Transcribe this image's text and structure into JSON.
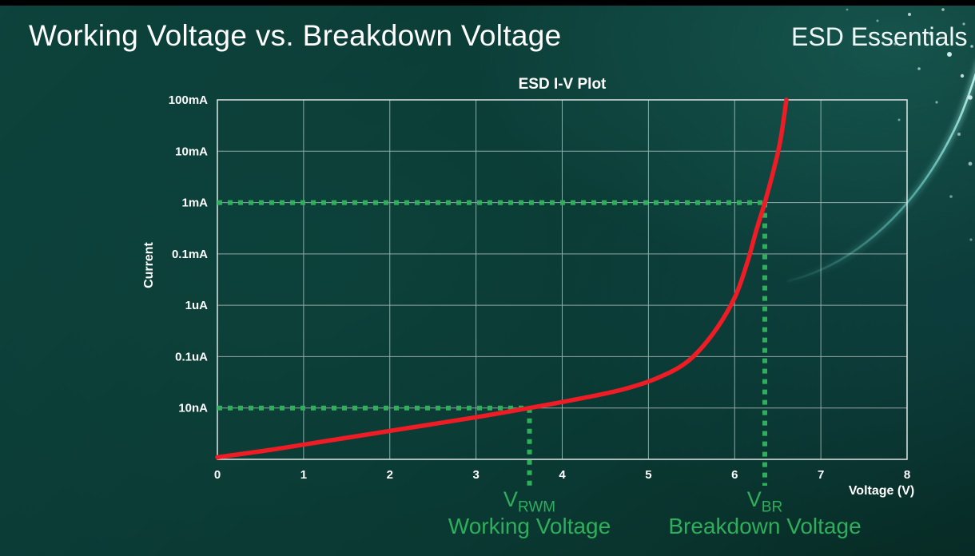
{
  "slide": {
    "title": "Working Voltage vs. Breakdown Voltage",
    "brand": "ESD Essentials"
  },
  "colors": {
    "curve_red": "#ee1c25",
    "annotation_green": "#2fae5b",
    "grid": "#c2cccb",
    "border": "#dfe7e6",
    "text": "#ffffff",
    "background_teal": "#0a3530",
    "swoosh": "#7fe8df"
  },
  "chart_data": {
    "type": "line",
    "title": "ESD I-V Plot",
    "xlabel": "Voltage (V)",
    "ylabel": "Current",
    "x_range": [
      0,
      8
    ],
    "x_tick_labels": [
      "0",
      "1",
      "2",
      "3",
      "4",
      "5",
      "6",
      "7",
      "8"
    ],
    "y_scale": "log (labels as shown, top to bottom)",
    "y_tick_labels": [
      "100mA",
      "10mA",
      "1mA",
      "0.1mA",
      "1uA",
      "0.1uA",
      "10nA"
    ],
    "grid": true,
    "series": [
      {
        "name": "esd-device-iv-curve",
        "color": "#ee1c25",
        "points_units": "[volts, grid-rows above bottom axis (each row = one labeled current level)]",
        "points": [
          [
            0,
            0.04
          ],
          [
            0.6,
            0.18
          ],
          [
            1.2,
            0.34
          ],
          [
            1.8,
            0.5
          ],
          [
            2.4,
            0.66
          ],
          [
            3.0,
            0.82
          ],
          [
            3.62,
            1.0
          ],
          [
            4.2,
            1.18
          ],
          [
            4.7,
            1.36
          ],
          [
            5.1,
            1.58
          ],
          [
            5.45,
            1.9
          ],
          [
            5.75,
            2.45
          ],
          [
            6.0,
            3.15
          ],
          [
            6.15,
            3.85
          ],
          [
            6.25,
            4.45
          ],
          [
            6.35,
            5.0
          ],
          [
            6.45,
            5.62
          ],
          [
            6.53,
            6.2
          ],
          [
            6.6,
            7.0
          ]
        ]
      }
    ],
    "annotations": [
      {
        "id": "working-voltage",
        "symbol": "V",
        "symbol_sub": "RWM",
        "caption": "Working Voltage",
        "x_volts": 3.62,
        "y_level": "10nA",
        "color": "#2fae5b"
      },
      {
        "id": "breakdown-voltage",
        "symbol": "V",
        "symbol_sub": "BR",
        "caption": "Breakdown Voltage",
        "x_volts": 6.35,
        "y_level": "1mA",
        "color": "#2fae5b"
      }
    ]
  }
}
